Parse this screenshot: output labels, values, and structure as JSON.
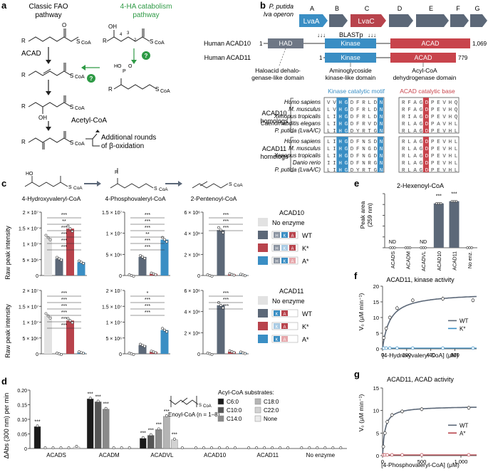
{
  "colors": {
    "slate": "#5c6878",
    "red": "#b8434c",
    "blue": "#3a8ec4",
    "green": "#2e9a45",
    "lightgray": "#e2e2e2",
    "kinaseBlue": "#3a8ec4",
    "acadRed": "#c8444c"
  },
  "panel_a": {
    "label": "a",
    "classic_fao": "Classic FAO\npathway",
    "ha_pathway": "4-HA catabolism\npathway",
    "acad": "ACAD",
    "acetyl_coa": "Acetyl-CoA",
    "additional": "Additional rounds\nof β-oxidation",
    "question": "?",
    "coa": "CoA"
  },
  "panel_b": {
    "label": "b",
    "operon_title": "P. putida\nlva operon",
    "genes": [
      "LvaA",
      "B",
      "LvaC",
      "D",
      "E",
      "F",
      "G"
    ],
    "blastp": "BLASTp",
    "acad10": "Human ACAD10",
    "acad11": "Human ACAD11",
    "acad10_len": "1,069",
    "acad11_len": "779",
    "one": "1",
    "domains": {
      "had": "HAD",
      "kinase": "Kinase",
      "acad": "ACAD"
    },
    "domain_desc": {
      "had": "Haloacid dehalo-\ngenase-like domain",
      "kinase": "Aminoglycoside\nkinase-like domain",
      "acad": "Acyl-CoA\ndehydrogenase domain"
    },
    "motif_title": "Kinase catalytic motif",
    "base_title": "ACAD catalytic base",
    "acad10_homologs": "ACAD10\nhomologs",
    "acad11_homologs": "ACAD11\nhomologs",
    "acad10_species": [
      "Homo sapiens",
      "M. musculus",
      "Xenopus tropicalis",
      "Caenorhabditis elegans",
      "P. putida (LvaA/C)"
    ],
    "acad11_species": [
      "Homo sapiens",
      "M. musculus",
      "Xenopus tropicalis",
      "Danio rerio",
      "P. putida (LvaA/C)"
    ],
    "acad10_kin_seq": [
      "VVHGDFRLDN",
      "LVHGDFRLDN",
      "LIHGDFRLDN",
      "LIHGDFRVDN",
      "LIHGDYRTGN"
    ],
    "acad10_acad_seq": [
      "RFAGDPEVHQ",
      "RFAGDPEVHQ",
      "RIAGDPEVHQ",
      "RLAGDPAVHL",
      "RLAGDPEVHL"
    ],
    "acad11_kin_seq": [
      "LIHGDFNSDN",
      "LIHGDFNGDN",
      "LIHGDFNGDN",
      "IIHGDFNRGN",
      "LIHGDYRTGN"
    ],
    "acad11_acad_seq": [
      "RLAGDPEVHL",
      "RLAGDPEVHL",
      "RLAGDPEVHL",
      "RLAGDPEVHL",
      "RLAGDPEVHL"
    ]
  },
  "panel_c": {
    "label": "c",
    "chem": [
      "4-Hydroxyvaleryl-CoA",
      "4-Phosphovaleryl-CoA",
      "2-Pentenoyl-CoA"
    ],
    "ylabel": "Raw peak intensity",
    "acad10_title": "ACAD10",
    "acad11_title": "ACAD11",
    "legend": [
      "No enzyme",
      "WT",
      "K*",
      "A*"
    ],
    "row1": [
      {
        "ticks": [
          "0",
          "5 × 10⁶",
          "1 × 10⁷",
          "1.5 × 10⁷",
          "2 × 10⁷"
        ],
        "ymax": 20000000,
        "values": [
          12000000,
          5300000,
          14800000,
          4200000
        ],
        "sig": [
          "***",
          "**",
          "***",
          "***",
          "***",
          "***"
        ]
      },
      {
        "ticks": [
          "0",
          "5 × 10⁶",
          "1 × 10⁷",
          "1.5 × 10⁷"
        ],
        "ymax": 15000000,
        "values": [
          0,
          4400000,
          400000,
          8500000
        ],
        "sig": [
          "***",
          "***",
          "***",
          "**",
          "***",
          "***"
        ]
      },
      {
        "ticks": [
          "0",
          "2 × 10⁶",
          "4 × 10⁶",
          "6 × 10⁶"
        ],
        "ymax": 6000000,
        "values": [
          0,
          4300000,
          100000,
          50000
        ],
        "sig": [
          "***",
          "***",
          "***"
        ]
      }
    ],
    "row2": [
      {
        "ticks": [
          "0",
          "5 × 10⁶",
          "1 × 10⁷",
          "1.5 × 10⁷",
          "2 × 10⁷"
        ],
        "ymax": 20000000,
        "values": [
          12000000,
          0,
          10500000,
          400000
        ],
        "sig": [
          "***",
          "***",
          "***",
          "***",
          "***",
          "***"
        ]
      },
      {
        "ticks": [
          "0",
          "5 × 10⁶",
          "1 × 10⁷",
          "1.5 × 10⁷",
          "2 × 10⁷"
        ],
        "ymax": 20000000,
        "values": [
          0,
          2700000,
          600000,
          7500000
        ],
        "sig": [
          "*",
          "***",
          "***",
          "***"
        ]
      },
      {
        "ticks": [
          "0",
          "2 × 10⁶",
          "4 × 10⁶",
          "6 × 10⁶"
        ],
        "ymax": 6000000,
        "values": [
          0,
          4600000,
          200000,
          100000
        ],
        "sig": [
          "***",
          "***",
          "***"
        ]
      }
    ]
  },
  "panel_d": {
    "label": "d",
    "ylabel": "ΔAbs (300 nm) per min",
    "yticks": [
      "0",
      "0.05",
      "0.10",
      "0.15",
      "0.20"
    ],
    "ymax": 0.2,
    "enzymes": [
      "ACADS",
      "ACADM",
      "ACADVL",
      "ACAD10",
      "ACAD11",
      "No enzyme"
    ],
    "substrates_title": "Acyl-CoA substrates:",
    "substrates": [
      "C6:0",
      "C10:0",
      "C14:0",
      "C18:0",
      "C22:0",
      "None"
    ],
    "substrate_colors": [
      "#1a1a1a",
      "#555555",
      "#8a8a8a",
      "#b4b4b4",
      "#d2d2d2",
      "#ebebeb"
    ],
    "enoyl_label": "Enoyl-CoA (n = 1–8)",
    "values": [
      [
        0.075,
        0,
        0,
        0,
        0,
        0.005
      ],
      [
        0.17,
        0.16,
        0.135,
        0,
        0,
        0
      ],
      [
        0.035,
        0.045,
        0.065,
        0.11,
        0.03,
        0
      ],
      [
        0,
        0,
        0,
        0,
        0,
        0
      ],
      [
        0,
        0,
        0,
        0,
        0,
        0
      ],
      [
        0,
        0,
        0,
        0,
        0,
        0
      ]
    ],
    "sig": "***"
  },
  "panel_e": {
    "label": "e",
    "title": "2-Hexenoyl-CoA",
    "ylabel": "Peak area\n(259 nm)",
    "categories": [
      "ACADS",
      "ACADM",
      "ACADVL",
      "ACAD10",
      "ACAD11",
      "No enz."
    ],
    "values": [
      0,
      0,
      0,
      41,
      43,
      0
    ],
    "ymax": 50,
    "nd": "ND",
    "sig": "***"
  },
  "panel_f": {
    "label": "f",
    "title": "ACAD11, kinase activity",
    "ylabel": "V₀ (μM min⁻¹)",
    "xlabel": "[4-Hydroxyvaleryl-CoA] (μM)",
    "xticks": [
      "0",
      "200",
      "400",
      "600"
    ],
    "yticks": [
      "0",
      "5",
      "10",
      "15",
      "20"
    ],
    "xmax": 780,
    "ymax": 20,
    "legend": [
      "WT",
      "K*"
    ],
    "wt_points": [
      [
        10,
        3.5
      ],
      [
        30,
        6.5
      ],
      [
        60,
        10
      ],
      [
        120,
        13
      ],
      [
        250,
        15.5
      ],
      [
        500,
        16
      ],
      [
        750,
        15.5
      ]
    ],
    "vmax": 18,
    "km": 60
  },
  "panel_g": {
    "label": "g",
    "title": "ACAD11, ACAD activity",
    "ylabel": "V₀ (μM min⁻¹)",
    "xlabel": "[4-Phosphovaleryl-CoA] (μM)",
    "xticks": [
      "0",
      "500",
      "1,000"
    ],
    "yticks": [
      "0",
      "5",
      "10",
      "15"
    ],
    "xmax": 1200,
    "ymax": 15,
    "legend": [
      "WT",
      "A*"
    ],
    "wt_points": [
      [
        10,
        2
      ],
      [
        30,
        5
      ],
      [
        60,
        7.5
      ],
      [
        120,
        9
      ],
      [
        250,
        9.8
      ],
      [
        500,
        10.3
      ],
      [
        1100,
        10.6
      ]
    ],
    "vmax": 11,
    "km": 30
  }
}
